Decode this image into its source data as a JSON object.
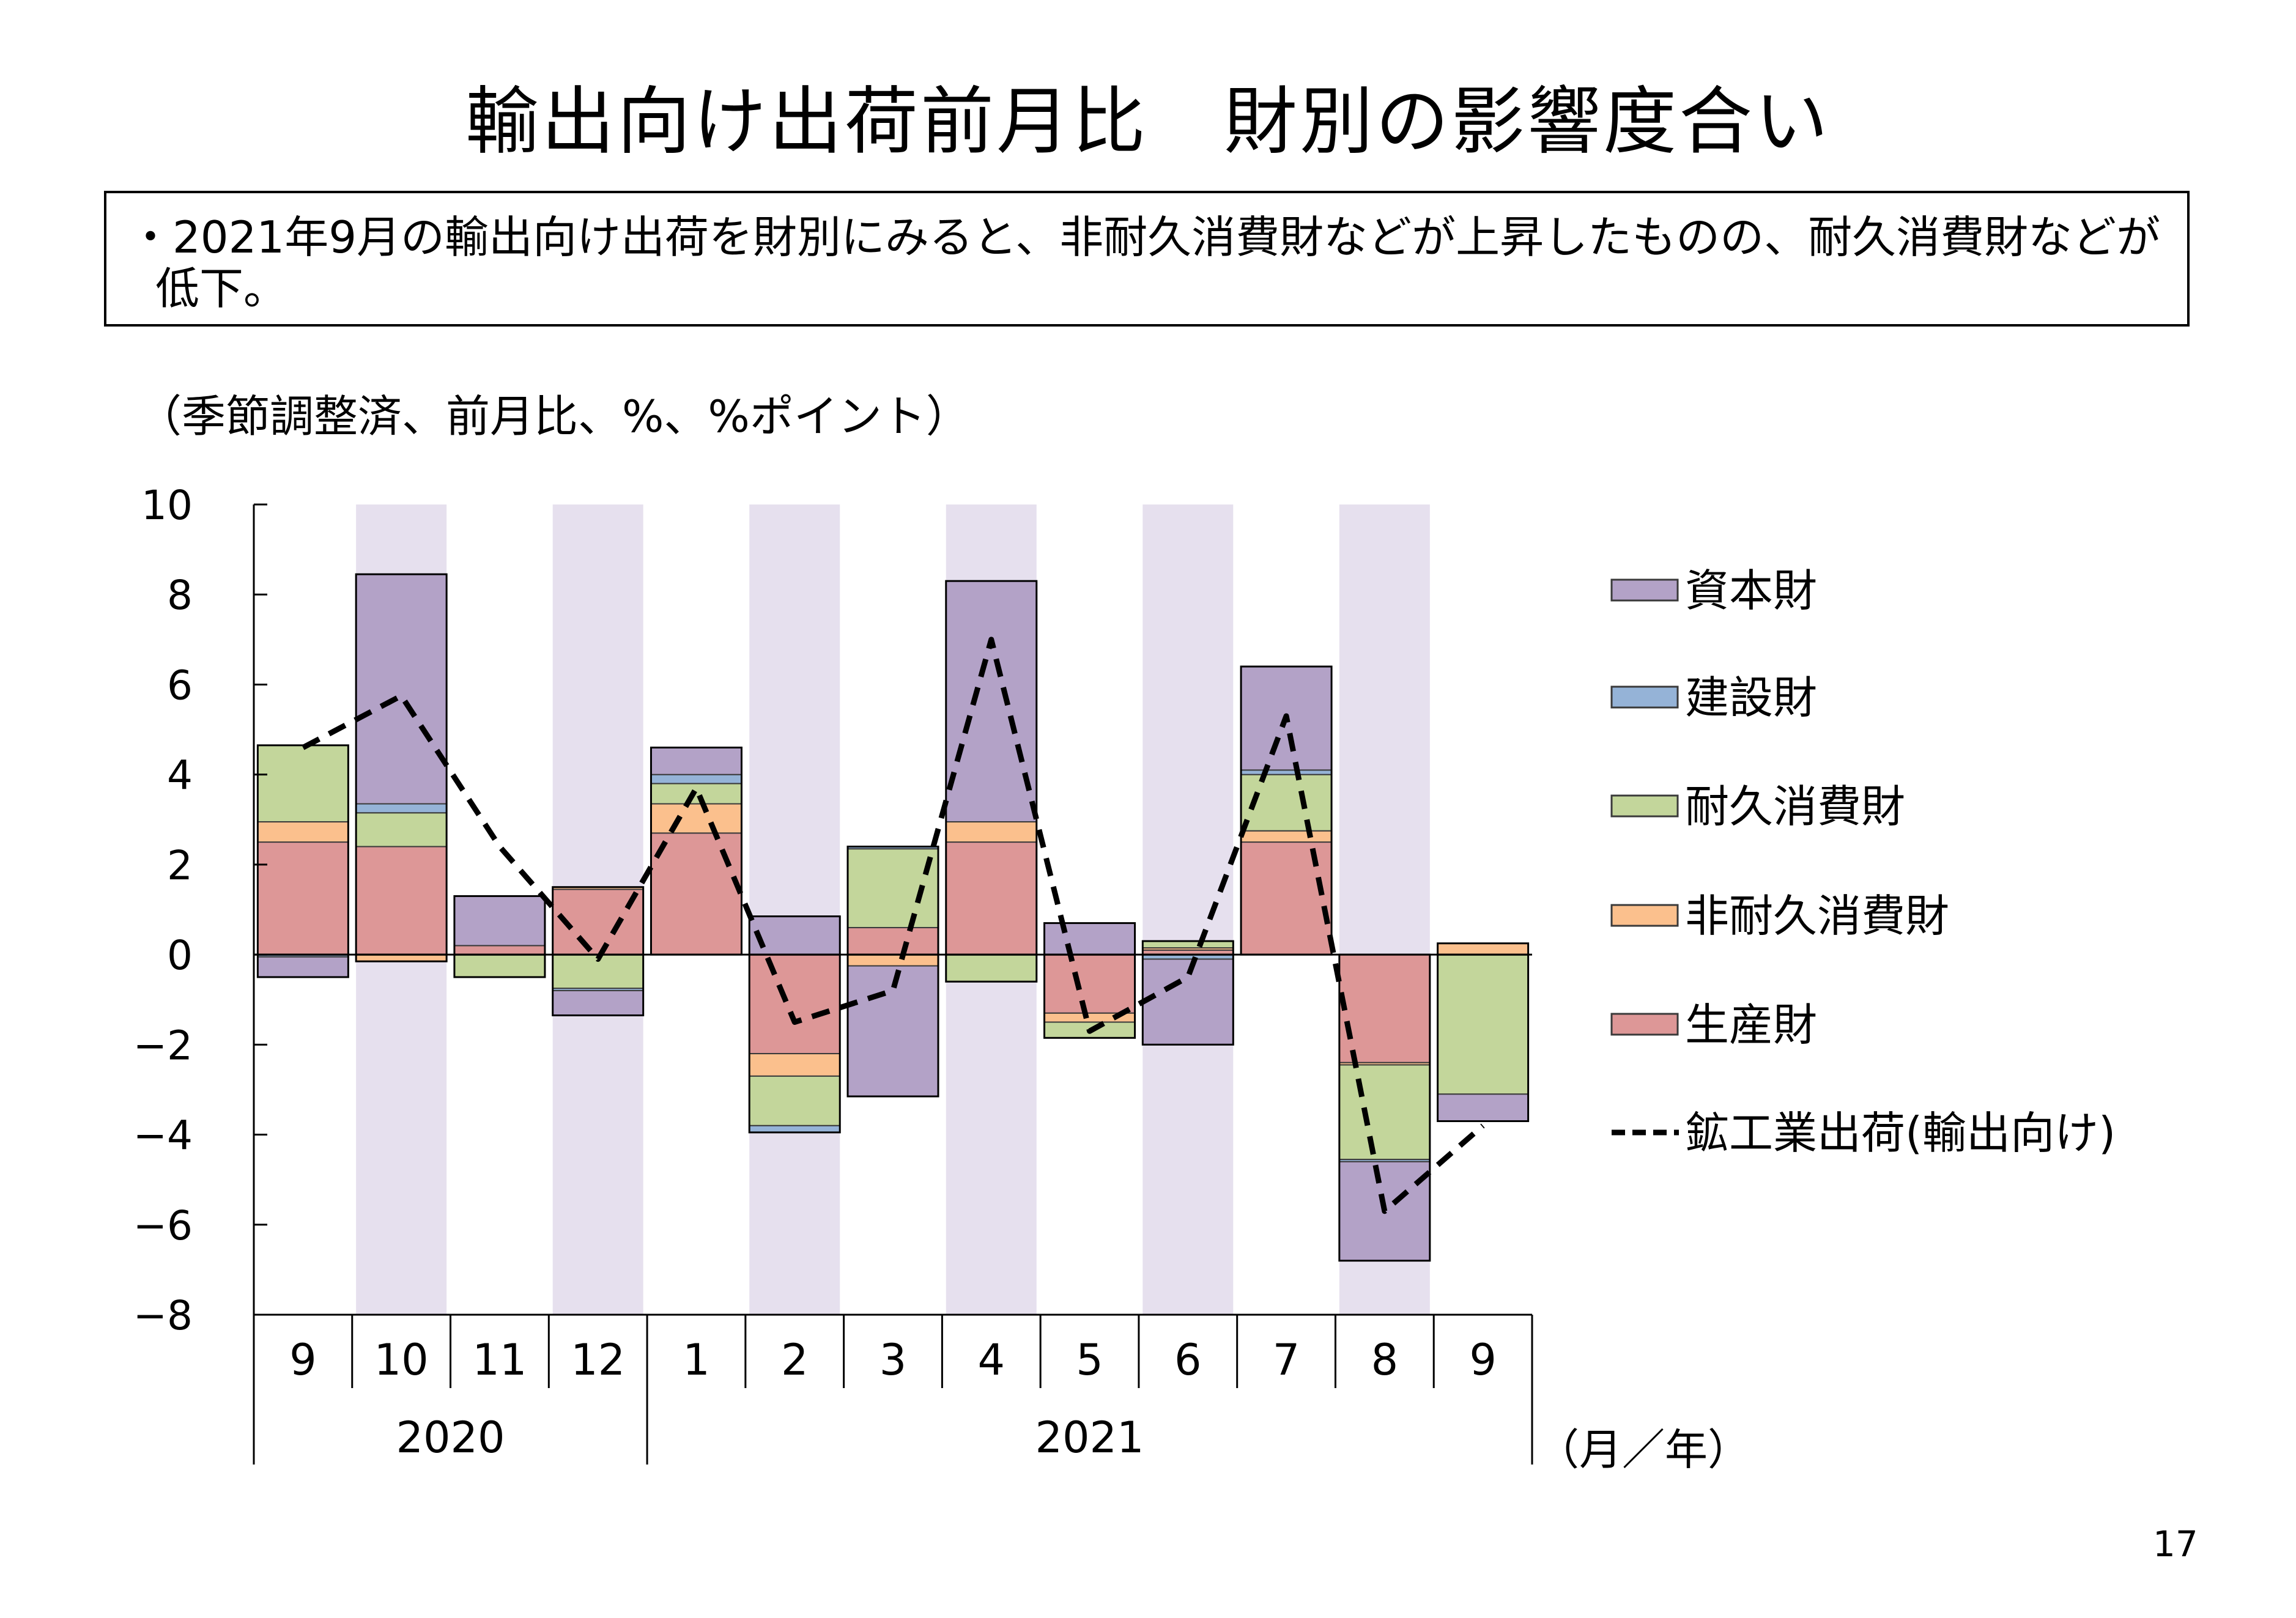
{
  "page": {
    "title": "輸出向け出荷前月比　財別の影響度合い",
    "summary": "・2021年9月の輸出向け出荷を財別にみると、非耐久消費財などが上昇したものの、耐久消費財などが低下。",
    "unit_note": "（季節調整済、前月比、%、%ポイント）",
    "page_number": "17"
  },
  "chart_data": {
    "type": "bar",
    "stacked": true,
    "categories": [
      "9",
      "10",
      "11",
      "12",
      "1",
      "2",
      "3",
      "4",
      "5",
      "6",
      "7",
      "8",
      "9"
    ],
    "year_groups": [
      {
        "label": "2020",
        "start": 0,
        "end": 3
      },
      {
        "label": "2021",
        "start": 4,
        "end": 12
      }
    ],
    "x_unit_label": "（月／年）",
    "ylim": [
      -8,
      10
    ],
    "yticks": [
      10,
      8,
      6,
      4,
      2,
      0,
      -2,
      -4,
      -6,
      -8
    ],
    "ytick_labels": [
      "10",
      "8",
      "6",
      "4",
      "2",
      "0",
      "−2",
      "−4",
      "−6",
      "−8"
    ],
    "shaded_categories": [
      1,
      3,
      5,
      7,
      9,
      11
    ],
    "shade_color": "#e6e0ee",
    "grid": false,
    "legend_position": "right",
    "series": [
      {
        "name": "生産財",
        "color": "#dd9797",
        "values": [
          2.5,
          2.4,
          0.2,
          1.45,
          2.7,
          -2.2,
          0.6,
          2.5,
          -1.3,
          0.1,
          2.5,
          -2.4,
          0.0
        ]
      },
      {
        "name": "非耐久消費財",
        "color": "#fbc08d",
        "values": [
          0.45,
          -0.15,
          0.0,
          0.05,
          0.65,
          -0.5,
          -0.25,
          0.45,
          -0.2,
          0.05,
          0.25,
          -0.05,
          0.25
        ]
      },
      {
        "name": "耐久消費財",
        "color": "#c3d69b",
        "values": [
          1.7,
          0.75,
          -0.5,
          -0.75,
          0.45,
          -1.1,
          1.75,
          -0.6,
          -0.35,
          0.15,
          1.25,
          -2.1,
          -3.1
        ]
      },
      {
        "name": "建設財",
        "color": "#95b3d7",
        "values": [
          -0.05,
          0.2,
          0.0,
          -0.05,
          0.2,
          -0.15,
          0.05,
          0.0,
          0.0,
          -0.1,
          0.1,
          -0.05,
          0.0
        ]
      },
      {
        "name": "資本財",
        "color": "#b3a2c7",
        "values": [
          -0.45,
          5.1,
          1.1,
          -0.55,
          0.6,
          0.85,
          -2.9,
          5.35,
          0.7,
          -1.9,
          2.3,
          -2.2,
          -0.6
        ]
      },
      {
        "name": "鉱工業出荷(輸出向け)",
        "type": "line",
        "style": "dashed",
        "color": "#000000",
        "values": [
          4.6,
          5.75,
          2.4,
          -0.1,
          3.7,
          -1.5,
          -0.8,
          7.0,
          -1.7,
          -0.5,
          5.3,
          -5.7,
          -3.8
        ]
      }
    ],
    "legend": [
      "資本財",
      "建設財",
      "耐久消費財",
      "非耐久消費財",
      "生産財",
      "鉱工業出荷(輸出向け)"
    ]
  }
}
